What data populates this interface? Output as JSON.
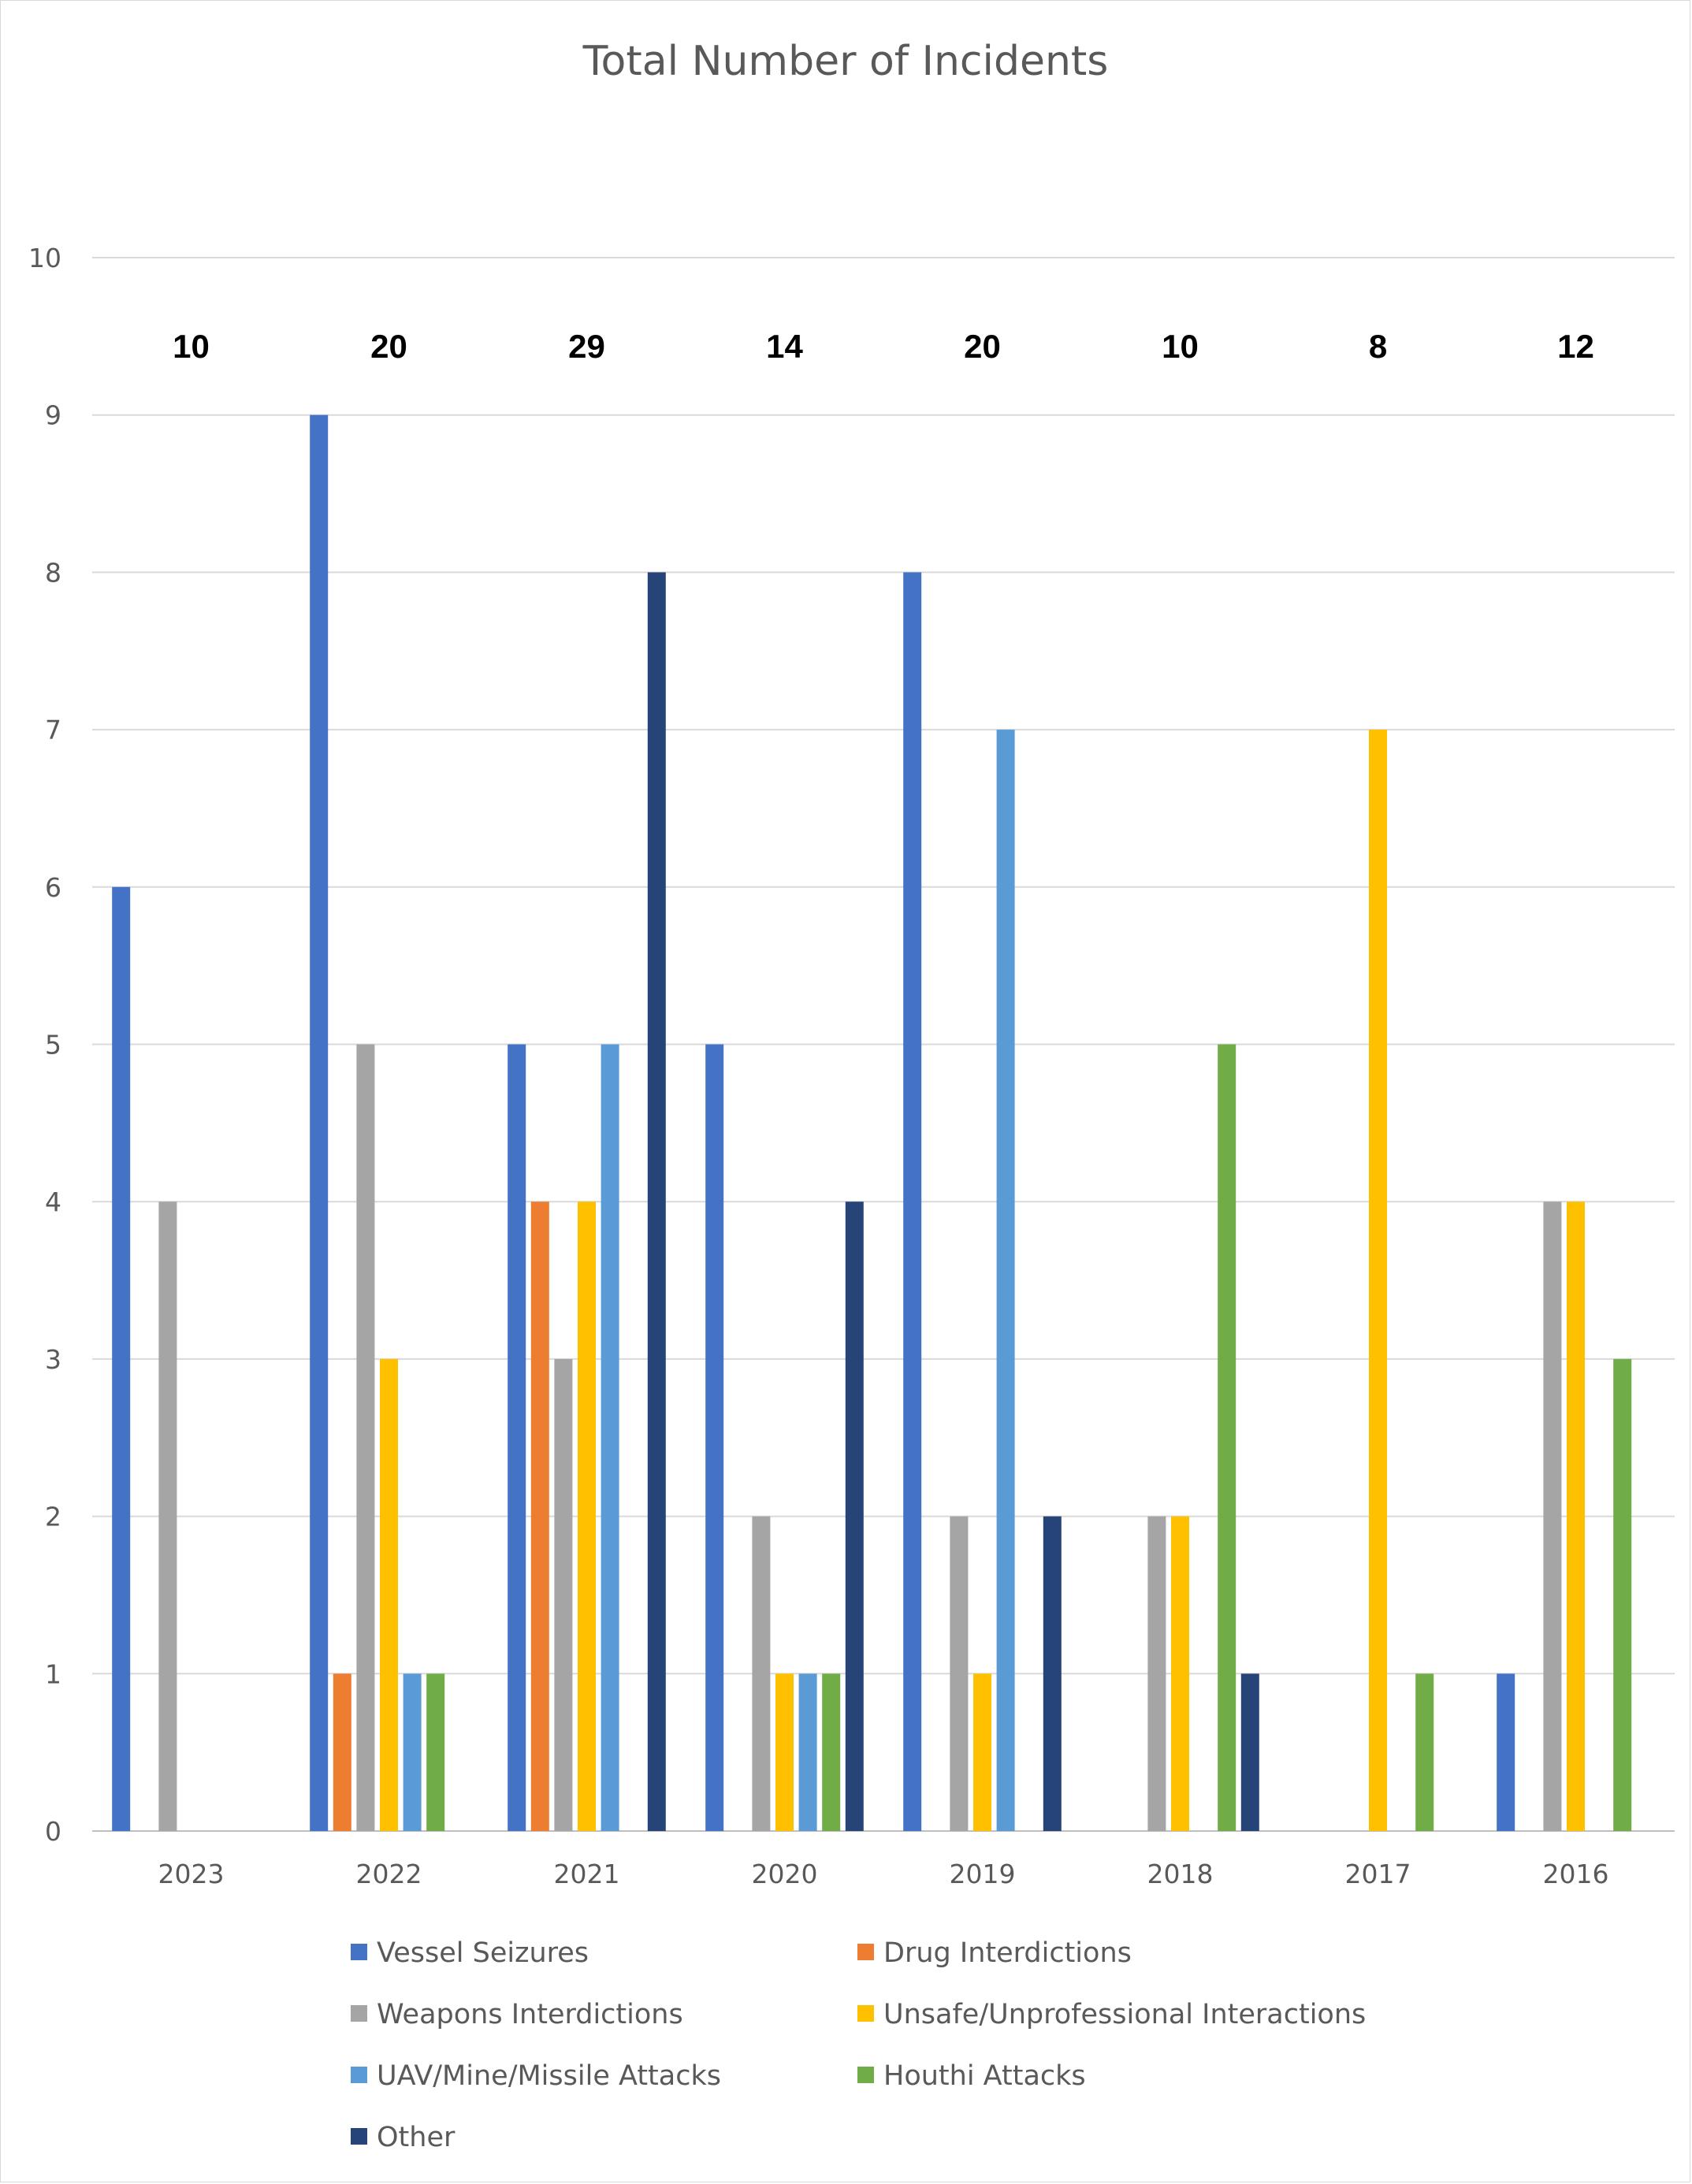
{
  "chart_data": {
    "type": "bar",
    "title": "Total Number of Incidents",
    "categories": [
      "2023",
      "2022",
      "2021",
      "2020",
      "2019",
      "2018",
      "2017",
      "2016"
    ],
    "totals": [
      "10",
      "20",
      "29",
      "14",
      "20",
      "10",
      "8",
      "12"
    ],
    "yticks": [
      "0",
      "1",
      "2",
      "3",
      "4",
      "5",
      "6",
      "7",
      "8",
      "9",
      "10"
    ],
    "ylim": [
      0,
      10
    ],
    "grid": true,
    "legend_position": "bottom",
    "series": [
      {
        "name": "Vessel Seizures",
        "color": "#4472C4",
        "values": [
          6,
          9,
          5,
          5,
          8,
          0,
          0,
          1
        ]
      },
      {
        "name": "Drug Interdictions",
        "color": "#ED7D31",
        "values": [
          0,
          1,
          4,
          0,
          0,
          0,
          0,
          0
        ]
      },
      {
        "name": "Weapons Interdictions",
        "color": "#A5A5A5",
        "values": [
          4,
          5,
          3,
          2,
          2,
          2,
          0,
          4
        ]
      },
      {
        "name": "Unsafe/Unprofessional Interactions",
        "color": "#FFC000",
        "values": [
          0,
          3,
          4,
          1,
          1,
          2,
          7,
          4
        ]
      },
      {
        "name": "UAV/Mine/Missile Attacks",
        "color": "#5B9BD5",
        "values": [
          0,
          1,
          5,
          1,
          7,
          0,
          0,
          0
        ]
      },
      {
        "name": "Houthi Attacks",
        "color": "#70AD47",
        "values": [
          0,
          1,
          0,
          1,
          0,
          5,
          1,
          3
        ]
      },
      {
        "name": "Other",
        "color": "#264478",
        "values": [
          0,
          0,
          8,
          4,
          2,
          1,
          0,
          0
        ]
      }
    ]
  }
}
